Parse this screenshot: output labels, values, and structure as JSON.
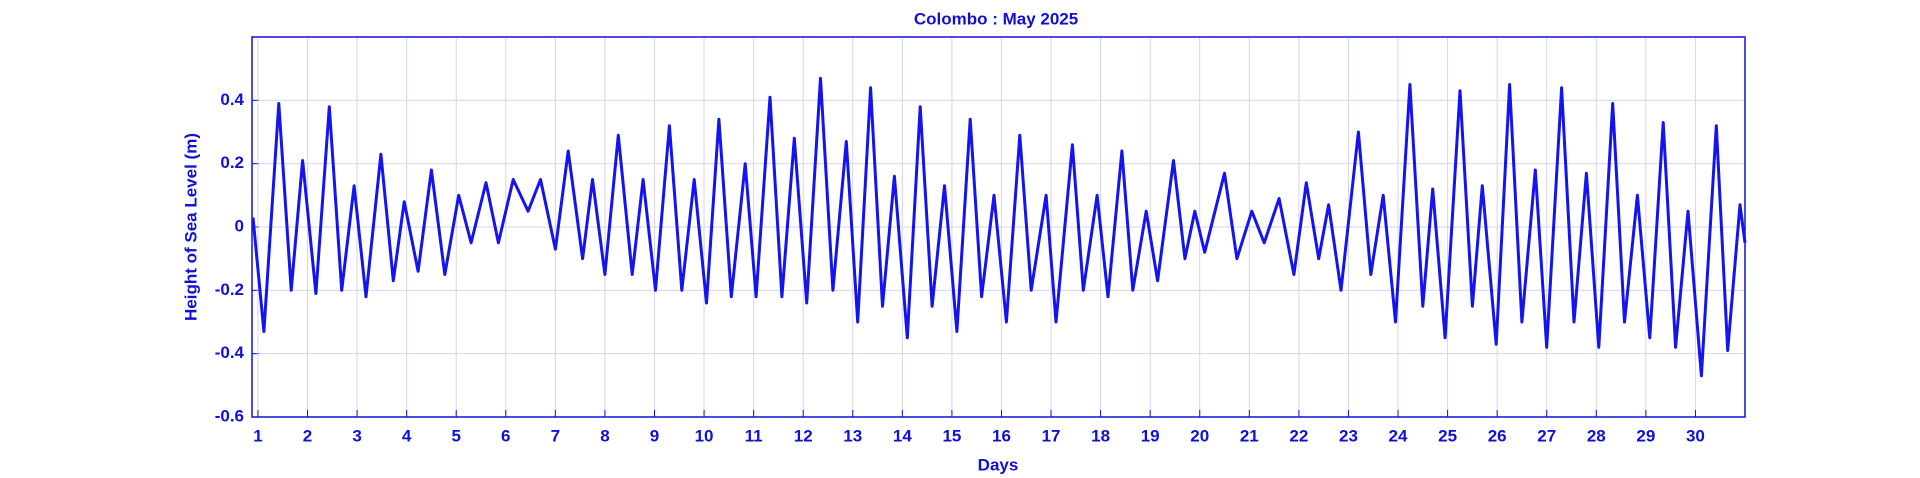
{
  "chart_data": {
    "type": "line",
    "title": "Colombo : May 2025",
    "x_label": "Days",
    "y_label": "Height of Sea Level (m)",
    "xlim": [
      0.88,
      31
    ],
    "xticks": [
      1,
      2,
      3,
      4,
      5,
      6,
      7,
      8,
      9,
      10,
      11,
      12,
      13,
      14,
      15,
      16,
      17,
      18,
      19,
      20,
      21,
      22,
      23,
      24,
      25,
      26,
      27,
      28,
      29,
      30
    ],
    "ylim": [
      -0.6,
      0.6
    ],
    "yticks": [
      -0.6,
      -0.4,
      -0.2,
      0,
      0.2,
      0.4
    ],
    "grid": true,
    "x": [
      0.9,
      1.12,
      1.42,
      1.67,
      1.9,
      2.17,
      2.44,
      2.69,
      2.94,
      3.18,
      3.48,
      3.73,
      3.95,
      4.23,
      4.5,
      4.77,
      5.05,
      5.3,
      5.6,
      5.85,
      6.15,
      6.45,
      6.7,
      7.0,
      7.26,
      7.55,
      7.75,
      8.0,
      8.27,
      8.55,
      8.77,
      9.02,
      9.3,
      9.55,
      9.8,
      10.05,
      10.3,
      10.55,
      10.83,
      11.05,
      11.33,
      11.57,
      11.82,
      12.07,
      12.35,
      12.6,
      12.87,
      13.1,
      13.36,
      13.6,
      13.84,
      14.1,
      14.36,
      14.6,
      14.85,
      15.1,
      15.37,
      15.6,
      15.85,
      16.1,
      16.37,
      16.6,
      16.9,
      17.1,
      17.43,
      17.65,
      17.93,
      18.15,
      18.43,
      18.65,
      18.92,
      19.15,
      19.47,
      19.7,
      19.9,
      20.1,
      20.5,
      20.75,
      21.05,
      21.3,
      21.6,
      21.9,
      22.15,
      22.4,
      22.6,
      22.85,
      23.2,
      23.45,
      23.7,
      23.95,
      24.24,
      24.5,
      24.7,
      24.95,
      25.25,
      25.5,
      25.7,
      25.98,
      26.25,
      26.5,
      26.77,
      27.0,
      27.3,
      27.55,
      27.8,
      28.05,
      28.33,
      28.57,
      28.83,
      29.08,
      29.35,
      29.6,
      29.85,
      30.12,
      30.42,
      30.65,
      30.9,
      31.0
    ],
    "series": [
      {
        "name": "Height of Sea Level",
        "color": "#1414f0",
        "values": [
          0.03,
          -0.33,
          0.39,
          -0.2,
          0.21,
          -0.21,
          0.38,
          -0.2,
          0.13,
          -0.22,
          0.23,
          -0.17,
          0.08,
          -0.14,
          0.18,
          -0.15,
          0.1,
          -0.05,
          0.14,
          -0.05,
          0.15,
          0.05,
          0.15,
          -0.07,
          0.24,
          -0.1,
          0.15,
          -0.15,
          0.29,
          -0.15,
          0.15,
          -0.2,
          0.32,
          -0.2,
          0.15,
          -0.24,
          0.34,
          -0.22,
          0.2,
          -0.22,
          0.41,
          -0.22,
          0.28,
          -0.24,
          0.47,
          -0.2,
          0.27,
          -0.3,
          0.44,
          -0.25,
          0.16,
          -0.35,
          0.38,
          -0.25,
          0.13,
          -0.33,
          0.34,
          -0.22,
          0.1,
          -0.3,
          0.29,
          -0.2,
          0.1,
          -0.3,
          0.26,
          -0.2,
          0.1,
          -0.22,
          0.24,
          -0.2,
          0.05,
          -0.17,
          0.21,
          -0.1,
          0.05,
          -0.08,
          0.17,
          -0.1,
          0.05,
          -0.05,
          0.09,
          -0.15,
          0.14,
          -0.1,
          0.07,
          -0.2,
          0.3,
          -0.15,
          0.1,
          -0.3,
          0.45,
          -0.25,
          0.12,
          -0.35,
          0.43,
          -0.25,
          0.13,
          -0.37,
          0.45,
          -0.3,
          0.18,
          -0.38,
          0.44,
          -0.3,
          0.17,
          -0.38,
          0.39,
          -0.3,
          0.1,
          -0.35,
          0.33,
          -0.38,
          0.05,
          -0.47,
          0.32,
          -0.39,
          0.07,
          -0.05
        ]
      }
    ]
  }
}
